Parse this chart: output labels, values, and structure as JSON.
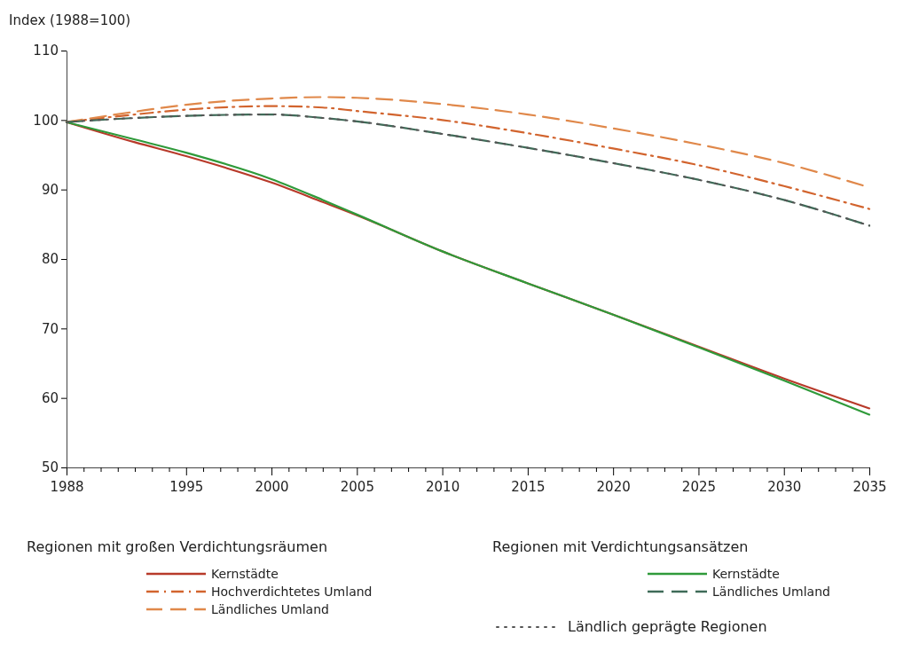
{
  "chart_data": {
    "type": "line",
    "ylabel": "Index (1988=100)",
    "xlim": [
      1988,
      2035
    ],
    "ylim": [
      50,
      110
    ],
    "yticks": [
      50,
      60,
      70,
      80,
      90,
      100,
      110
    ],
    "xticks": [
      1988,
      {
        "value": 1989,
        "label": null
      },
      {
        "value": 1990,
        "label": null
      },
      {
        "value": 1991,
        "label": null
      },
      {
        "value": 1992,
        "label": null
      },
      {
        "value": 1993,
        "label": null
      },
      {
        "value": 1994,
        "label": null
      },
      1995,
      {
        "value": 1996,
        "label": null
      },
      {
        "value": 1997,
        "label": null
      },
      {
        "value": 1998,
        "label": null
      },
      {
        "value": 1999,
        "label": null
      },
      2000,
      {
        "value": 2001,
        "label": null
      },
      {
        "value": 2002,
        "label": null
      },
      {
        "value": 2003,
        "label": null
      },
      {
        "value": 2004,
        "label": null
      },
      2005,
      {
        "value": 2006,
        "label": null
      },
      {
        "value": 2007,
        "label": null
      },
      {
        "value": 2008,
        "label": null
      },
      {
        "value": 2009,
        "label": null
      },
      2010,
      {
        "value": 2011,
        "label": null
      },
      {
        "value": 2012,
        "label": null
      },
      {
        "value": 2013,
        "label": null
      },
      {
        "value": 2014,
        "label": null
      },
      2015,
      {
        "value": 2016,
        "label": null
      },
      {
        "value": 2017,
        "label": null
      },
      {
        "value": 2018,
        "label": null
      },
      {
        "value": 2019,
        "label": null
      },
      2020,
      {
        "value": 2021,
        "label": null
      },
      {
        "value": 2022,
        "label": null
      },
      {
        "value": 2023,
        "label": null
      },
      {
        "value": 2024,
        "label": null
      },
      2025,
      {
        "value": 2026,
        "label": null
      },
      {
        "value": 2027,
        "label": null
      },
      {
        "value": 2028,
        "label": null
      },
      {
        "value": 2029,
        "label": null
      },
      2030,
      {
        "value": 2031,
        "label": null
      },
      {
        "value": 2032,
        "label": null
      },
      {
        "value": 2033,
        "label": null
      },
      {
        "value": 2034,
        "label": null
      },
      2035
    ],
    "x": [
      1988,
      1992,
      1995,
      2000,
      2003,
      2005,
      2010,
      2015,
      2020,
      2025,
      2030,
      2035
    ],
    "annotations": [
      "Regionen mit großen Verdichtungsräumen",
      "Regionen mit Verdichtungsansätzen"
    ],
    "legend": "bottom",
    "grid": false,
    "series": [
      {
        "name": "Kernstädte",
        "color": "#b83a2a",
        "line_style": "solid",
        "values": [
          99.7,
          96.8,
          94.8,
          91.0,
          88.2,
          86.3,
          81.1,
          76.5,
          72.0,
          67.4,
          62.8,
          58.5
        ]
      },
      {
        "name": "Hochverdichtetes Umland",
        "color": "#d2642e",
        "line_style": "dashdot",
        "values": [
          99.7,
          100.8,
          101.5,
          102.0,
          101.8,
          101.3,
          100.0,
          98.1,
          95.9,
          93.5,
          90.5,
          87.2
        ]
      },
      {
        "name": "Ländliches Umland",
        "color": "#e0884a",
        "line_style": "dashed",
        "values": [
          99.7,
          101.2,
          102.2,
          103.1,
          103.3,
          103.2,
          102.3,
          100.8,
          98.8,
          96.5,
          93.8,
          90.3
        ]
      },
      {
        "name": "Kernstädte",
        "color": "#2f9a3a",
        "line_style": "solid",
        "values": [
          99.7,
          97.2,
          95.3,
          91.5,
          88.5,
          86.4,
          81.1,
          76.5,
          72.0,
          67.3,
          62.5,
          57.6
        ]
      },
      {
        "name": "Ländliches Umland",
        "color": "#3f6b58",
        "line_style": "dashed",
        "values": [
          99.7,
          100.3,
          100.6,
          100.8,
          100.3,
          99.8,
          98.0,
          96.0,
          93.8,
          91.4,
          88.5,
          84.8
        ]
      },
      {
        "name": "Ländlich geprägte Regionen",
        "color": "#555555",
        "line_style": "dotted",
        "values": [
          99.7,
          100.3,
          100.6,
          100.8,
          100.3,
          99.8,
          98.0,
          96.0,
          93.8,
          91.4,
          88.5,
          84.8
        ]
      }
    ]
  }
}
